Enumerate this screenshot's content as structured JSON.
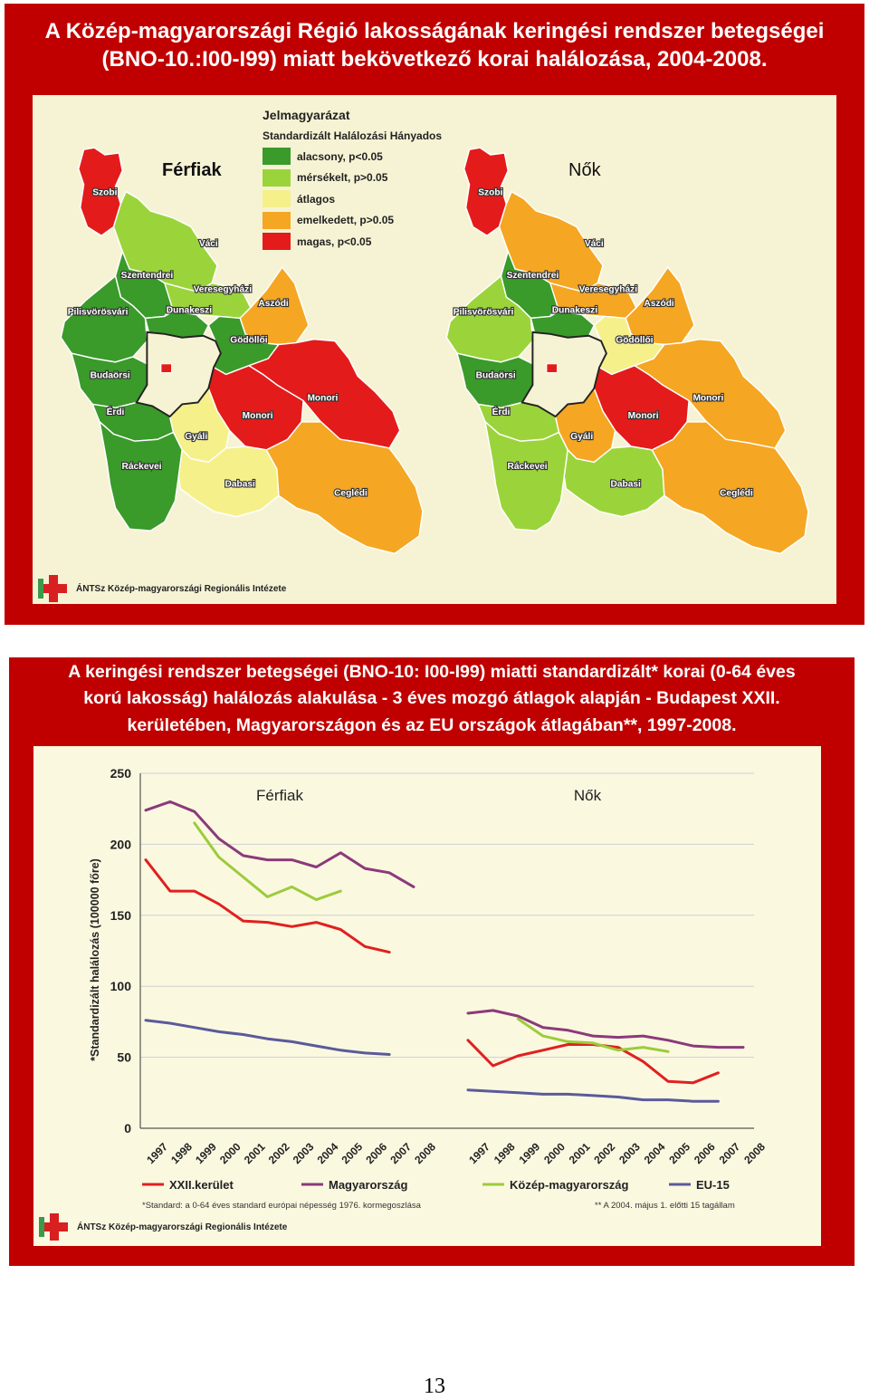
{
  "map_panel": {
    "title_line1": "A Közép-magyarországi Régió lakosságának keringési rendszer betegségei",
    "title_line2": "(BNO-10.:I00-I99) miatt bekövetkező korai halálozása, 2004-2008.",
    "legend": {
      "title": "Jelmagyarázat",
      "subtitle": "Standardizált Halálozási Hányados",
      "items": [
        {
          "label": "alacsony, p<0.05",
          "color": "#3a9a2a"
        },
        {
          "label": "mérsékelt, p>0.05",
          "color": "#9bd43a"
        },
        {
          "label": "átlagos",
          "color": "#f5f08a"
        },
        {
          "label": "emelkedett, p>0.05",
          "color": "#f5a623"
        },
        {
          "label": "magas, p<0.05",
          "color": "#e41b1b"
        }
      ]
    },
    "maps": [
      {
        "title": "Férfiak",
        "regions": [
          {
            "name": "Szobi",
            "level": "magas"
          },
          {
            "name": "Váci",
            "level": "mérsékelt"
          },
          {
            "name": "Szentendrei",
            "level": "alacsony"
          },
          {
            "name": "Veresegyházi",
            "level": "mérsékelt"
          },
          {
            "name": "Pilisvörösvári",
            "level": "alacsony"
          },
          {
            "name": "Dunakeszi",
            "level": "alacsony"
          },
          {
            "name": "Aszódi",
            "level": "emelkedett"
          },
          {
            "name": "Gödöllői",
            "level": "alacsony"
          },
          {
            "name": "Budaörsi",
            "level": "alacsony"
          },
          {
            "name": "Érdi",
            "level": "alacsony"
          },
          {
            "name": "Monori",
            "level": "magas"
          },
          {
            "name": "Monori",
            "level": "magas"
          },
          {
            "name": "Gyáli",
            "level": "átlagos"
          },
          {
            "name": "Ráckevei",
            "level": "alacsony"
          },
          {
            "name": "Dabasi",
            "level": "átlagos"
          },
          {
            "name": "Ceglédi",
            "level": "emelkedett"
          }
        ]
      },
      {
        "title": "Nők",
        "regions": [
          {
            "name": "Szobi",
            "level": "magas"
          },
          {
            "name": "Váci",
            "level": "emelkedett"
          },
          {
            "name": "Szentendrei",
            "level": "alacsony"
          },
          {
            "name": "Veresegyházi",
            "level": "emelkedett"
          },
          {
            "name": "Pilisvörösvári",
            "level": "mérsékelt"
          },
          {
            "name": "Dunakeszi",
            "level": "alacsony"
          },
          {
            "name": "Aszódi",
            "level": "emelkedett"
          },
          {
            "name": "Gödöllői",
            "level": "átlagos"
          },
          {
            "name": "Budaörsi",
            "level": "alacsony"
          },
          {
            "name": "Érdi",
            "level": "mérsékelt"
          },
          {
            "name": "Monori",
            "level": "emelkedett"
          },
          {
            "name": "Monori",
            "level": "magas"
          },
          {
            "name": "Gyáli",
            "level": "emelkedett"
          },
          {
            "name": "Ráckevei",
            "level": "mérsékelt"
          },
          {
            "name": "Dabasi",
            "level": "mérsékelt"
          },
          {
            "name": "Ceglédi",
            "level": "emelkedett"
          }
        ]
      }
    ],
    "logo_text": "ÁNTSz Közép-magyarországi Regionális Intézete"
  },
  "chart_panel": {
    "title_line1": "A keringési rendszer betegségei (BNO-10: I00-I99) miatti standardizált* korai (0-64 éves",
    "title_line2": "korú lakosság) halálozás alakulása - 3 éves mozgó átlagok alapján - Budapest XXII.",
    "title_line3": "kerületében, Magyarországon és az EU országok átlagában**, 1997-2008.",
    "footnote_left": "*Standard: a 0-64 éves standard európai népesség 1976. kormegoszlása",
    "footnote_right": "** A 2004. május 1. előtti 15 tagállam",
    "logo_text": "ÁNTSz Közép-magyarországi Regionális Intézete"
  },
  "chart_data": {
    "type": "line",
    "ylabel": "*Standardizált halálozás (100000 főre)",
    "ylim": [
      0,
      250
    ],
    "yticks": [
      0,
      50,
      100,
      150,
      200,
      250
    ],
    "grid": true,
    "legend_position": "bottom",
    "panels": [
      {
        "title": "Férfiak",
        "x": [
          "1997",
          "1998",
          "1999",
          "2000",
          "2001",
          "2002",
          "2003",
          "2004",
          "2005",
          "2006",
          "2007",
          "2008"
        ],
        "series": [
          {
            "name": "XXII.kerület",
            "color": "#e02020",
            "values": [
              189,
              167,
              167,
              158,
              146,
              145,
              142,
              145,
              140,
              128,
              124,
              null
            ]
          },
          {
            "name": "Magyarország",
            "color": "#8b3a7a",
            "values": [
              224,
              230,
              223,
              204,
              192,
              189,
              189,
              184,
              194,
              183,
              180,
              170
            ]
          },
          {
            "name": "Közép-magyarország",
            "color": "#9ccc3a",
            "values": [
              null,
              null,
              215,
              191,
              177,
              163,
              170,
              161,
              167,
              null,
              null,
              null
            ]
          },
          {
            "name": "EU-15",
            "color": "#5a5a9a",
            "values": [
              76,
              74,
              71,
              68,
              66,
              63,
              61,
              58,
              55,
              53,
              52,
              null
            ]
          }
        ]
      },
      {
        "title": "Nők",
        "x": [
          "1997",
          "1998",
          "1999",
          "2000",
          "2001",
          "2002",
          "2003",
          "2004",
          "2005",
          "2006",
          "2007",
          "2008"
        ],
        "series": [
          {
            "name": "XXII.kerület",
            "color": "#e02020",
            "values": [
              62,
              44,
              51,
              55,
              59,
              59,
              57,
              47,
              33,
              32,
              39,
              null
            ]
          },
          {
            "name": "Magyarország",
            "color": "#8b3a7a",
            "values": [
              81,
              83,
              79,
              71,
              69,
              65,
              64,
              65,
              62,
              58,
              57,
              57
            ]
          },
          {
            "name": "Közép-magyarország",
            "color": "#9ccc3a",
            "values": [
              null,
              null,
              77,
              65,
              61,
              60,
              55,
              57,
              54,
              null,
              null,
              null
            ]
          },
          {
            "name": "EU-15",
            "color": "#5a5a9a",
            "values": [
              27,
              26,
              25,
              24,
              24,
              23,
              22,
              20,
              20,
              19,
              19,
              null
            ]
          }
        ]
      }
    ]
  },
  "page_number": "13"
}
